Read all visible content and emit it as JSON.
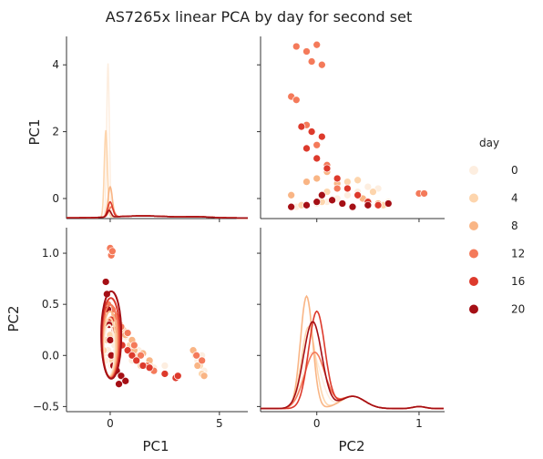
{
  "chart_data": {
    "type": "pairplot",
    "title": "AS7265x linear PCA by day for second set",
    "variables": [
      "PC1",
      "PC2"
    ],
    "hue": {
      "name": "day",
      "levels": [
        0,
        4,
        8,
        12,
        16,
        20
      ],
      "colors": [
        "#fdeee0",
        "#fdd5ad",
        "#f9b585",
        "#f47a5a",
        "#dd3a2c",
        "#a50f15"
      ]
    },
    "axes": {
      "PC1": {
        "range": [
          -2.0,
          6.3
        ],
        "ticks": [
          0,
          5
        ],
        "tick_labels": [
          "0",
          "5"
        ],
        "diag_range": [
          -0.6,
          4.85
        ],
        "diag_ticks": [
          0,
          2,
          4
        ],
        "diag_tick_labels": [
          "0",
          "2",
          "4"
        ]
      },
      "PC2": {
        "range": [
          -0.55,
          1.25
        ],
        "ticks": [
          -0.5,
          0.0,
          0.5,
          1.0
        ],
        "tick_labels": [
          "−0.5",
          "0.0",
          "0.5",
          "1.0"
        ],
        "bottom_ticks": [
          0,
          1
        ],
        "bottom_tick_labels": [
          "0",
          "1"
        ]
      }
    },
    "panels": {
      "pc1_vs_pc2_clusters": [
        {
          "day": 0,
          "points": [
            [
              -0.25,
              0.02
            ],
            [
              -0.2,
              -0.05
            ],
            [
              -0.1,
              0.05
            ],
            [
              0.05,
              -0.1
            ],
            [
              0.2,
              0.1
            ],
            [
              0.4,
              0.0
            ],
            [
              0.7,
              0.18
            ],
            [
              1.0,
              -0.05
            ],
            [
              1.3,
              0.05
            ],
            [
              1.6,
              -0.1
            ],
            [
              2.0,
              -0.12
            ],
            [
              2.5,
              -0.1
            ],
            [
              4.0,
              -0.05
            ],
            [
              4.2,
              0.0
            ],
            [
              4.3,
              -0.15
            ]
          ]
        },
        {
          "day": 4,
          "points": [
            [
              -0.3,
              0.05
            ],
            [
              -0.15,
              0.15
            ],
            [
              0.0,
              0.2
            ],
            [
              0.1,
              -0.05
            ],
            [
              0.3,
              0.05
            ],
            [
              0.6,
              0.25
            ],
            [
              0.9,
              0.1
            ],
            [
              1.2,
              0.0
            ],
            [
              1.4,
              -0.1
            ],
            [
              1.8,
              -0.08
            ],
            [
              3.9,
              0.0
            ],
            [
              4.1,
              -0.1
            ],
            [
              4.2,
              -0.18
            ]
          ]
        },
        {
          "day": 8,
          "points": [
            [
              -0.2,
              0.3
            ],
            [
              0.05,
              0.35
            ],
            [
              0.2,
              0.4
            ],
            [
              0.45,
              0.3
            ],
            [
              0.7,
              0.2
            ],
            [
              1.0,
              0.15
            ],
            [
              1.1,
              0.05
            ],
            [
              1.5,
              0.02
            ],
            [
              1.8,
              -0.05
            ],
            [
              3.8,
              0.05
            ],
            [
              4.0,
              -0.1
            ],
            [
              4.3,
              -0.2
            ]
          ]
        },
        {
          "day": 12,
          "points": [
            [
              0.0,
              1.05
            ],
            [
              0.05,
              0.98
            ],
            [
              0.1,
              1.02
            ],
            [
              -0.1,
              0.5
            ],
            [
              0.1,
              0.45
            ],
            [
              0.3,
              0.38
            ],
            [
              0.5,
              0.28
            ],
            [
              0.8,
              0.22
            ],
            [
              1.1,
              0.1
            ],
            [
              1.4,
              0.0
            ],
            [
              1.7,
              -0.1
            ],
            [
              2.0,
              -0.15
            ],
            [
              3.95,
              0.0
            ],
            [
              4.2,
              -0.05
            ]
          ]
        },
        {
          "day": 16,
          "points": [
            [
              -0.1,
              0.45
            ],
            [
              0.05,
              0.35
            ],
            [
              0.2,
              0.25
            ],
            [
              0.35,
              0.15
            ],
            [
              0.55,
              0.1
            ],
            [
              0.8,
              0.05
            ],
            [
              1.0,
              0.0
            ],
            [
              1.2,
              -0.05
            ],
            [
              1.5,
              -0.1
            ],
            [
              1.8,
              -0.12
            ],
            [
              2.5,
              -0.18
            ],
            [
              3.0,
              -0.22
            ],
            [
              3.1,
              -0.2
            ]
          ]
        },
        {
          "day": 20,
          "points": [
            [
              -0.2,
              0.72
            ],
            [
              -0.15,
              0.6
            ],
            [
              -0.1,
              0.45
            ],
            [
              -0.05,
              0.3
            ],
            [
              0.0,
              0.15
            ],
            [
              0.05,
              0.0
            ],
            [
              0.15,
              -0.1
            ],
            [
              0.3,
              -0.15
            ],
            [
              0.5,
              -0.2
            ],
            [
              0.7,
              -0.25
            ],
            [
              0.4,
              -0.28
            ]
          ]
        }
      ],
      "pc2_vs_pc1_clusters": [
        {
          "day": 0,
          "points": [
            [
              -0.2,
              -0.25
            ],
            [
              -0.1,
              -0.2
            ],
            [
              0.0,
              -0.15
            ],
            [
              0.1,
              -0.1
            ],
            [
              0.2,
              0.0
            ],
            [
              0.3,
              0.1
            ],
            [
              0.4,
              0.2
            ],
            [
              0.5,
              0.35
            ],
            [
              0.6,
              0.3
            ],
            [
              0.7,
              -0.1
            ]
          ]
        },
        {
          "day": 4,
          "points": [
            [
              -0.15,
              -0.2
            ],
            [
              0.05,
              -0.1
            ],
            [
              0.1,
              0.2
            ],
            [
              0.2,
              0.4
            ],
            [
              0.3,
              0.5
            ],
            [
              0.4,
              0.55
            ],
            [
              0.55,
              0.2
            ],
            [
              0.65,
              -0.2
            ]
          ]
        },
        {
          "day": 8,
          "points": [
            [
              -0.25,
              0.1
            ],
            [
              -0.1,
              0.5
            ],
            [
              0.0,
              0.6
            ],
            [
              0.1,
              0.8
            ],
            [
              0.2,
              0.45
            ],
            [
              0.3,
              0.3
            ],
            [
              0.45,
              0.0
            ],
            [
              0.6,
              -0.15
            ]
          ]
        },
        {
          "day": 12,
          "points": [
            [
              -0.2,
              4.55
            ],
            [
              -0.1,
              4.4
            ],
            [
              0.0,
              4.6
            ],
            [
              -0.05,
              4.1
            ],
            [
              0.05,
              4.0
            ],
            [
              -0.25,
              3.05
            ],
            [
              -0.2,
              2.95
            ],
            [
              -0.1,
              2.2
            ],
            [
              0.0,
              1.6
            ],
            [
              0.1,
              1.0
            ],
            [
              0.2,
              0.3
            ],
            [
              1.0,
              0.15
            ],
            [
              1.05,
              0.15
            ]
          ]
        },
        {
          "day": 16,
          "points": [
            [
              -0.15,
              2.15
            ],
            [
              -0.05,
              2.0
            ],
            [
              0.05,
              1.85
            ],
            [
              -0.1,
              1.5
            ],
            [
              0.0,
              1.2
            ],
            [
              0.1,
              0.9
            ],
            [
              0.2,
              0.6
            ],
            [
              0.3,
              0.3
            ],
            [
              0.4,
              0.1
            ],
            [
              0.5,
              -0.1
            ],
            [
              0.6,
              -0.2
            ]
          ]
        },
        {
          "day": 20,
          "points": [
            [
              -0.25,
              -0.25
            ],
            [
              -0.1,
              -0.2
            ],
            [
              0.0,
              -0.1
            ],
            [
              0.05,
              0.1
            ],
            [
              0.15,
              -0.05
            ],
            [
              0.25,
              -0.15
            ],
            [
              0.35,
              -0.25
            ],
            [
              0.5,
              -0.2
            ],
            [
              0.7,
              -0.15
            ]
          ]
        }
      ]
    },
    "legend": {
      "title": "day",
      "placement": "right",
      "entries": [
        "0",
        "4",
        "8",
        "12",
        "16",
        "20"
      ]
    }
  }
}
